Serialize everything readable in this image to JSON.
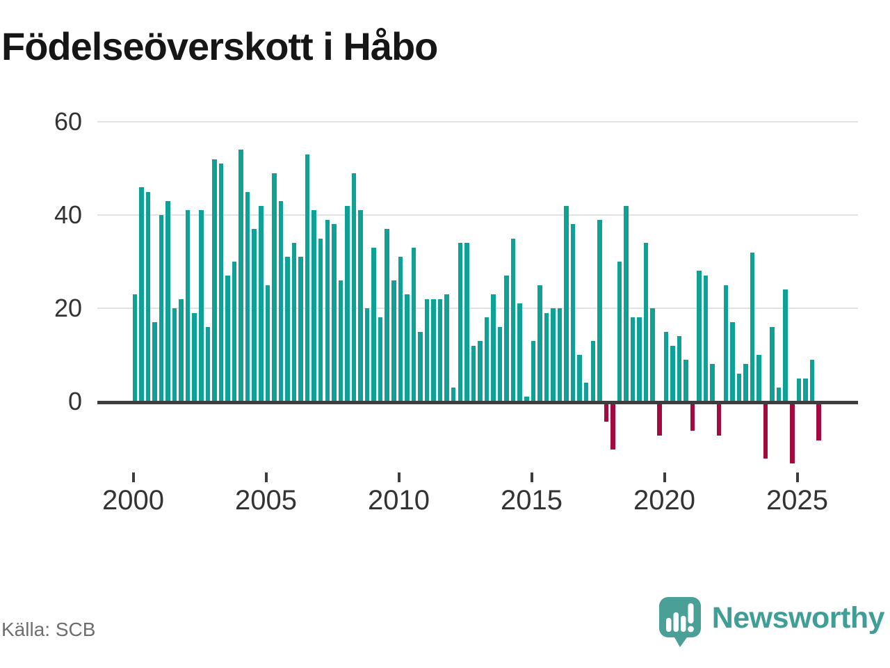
{
  "title": "Födelseöverskott i Håbo",
  "source_label": "Källa: SCB",
  "branding": {
    "wordmark": "Newsworthy",
    "logo_icon": "speech-bubble-bar-chart-icon",
    "logo_color": "#4a9f97",
    "wordmark_color": "#3f9f97"
  },
  "colors": {
    "positive_bar": "#0fa195",
    "negative_bar": "#a30b3f",
    "gridline": "#e2e2e2",
    "axis_line": "#3d3d3d",
    "tick_label": "#333333",
    "source_text": "#6e6e6e",
    "title_text": "#161616",
    "background": "#ffffff"
  },
  "chart_data": {
    "type": "bar",
    "title": "Födelseöverskott i Håbo",
    "xlabel": "",
    "ylabel": "",
    "frequency": "quarterly",
    "start_period": "2000-Q1",
    "end_period": "2025-Q4",
    "y_ticks": [
      0,
      20,
      40,
      60
    ],
    "x_tick_labels": [
      "2000",
      "2005",
      "2010",
      "2015",
      "2020",
      "2025"
    ],
    "ylim": [
      -15,
      62
    ],
    "grid": true,
    "legend": "none",
    "series": [
      {
        "name": "Födelseöverskott",
        "values": [
          23,
          46,
          45,
          17,
          40,
          43,
          20,
          22,
          41,
          19,
          41,
          16,
          52,
          51,
          27,
          30,
          54,
          45,
          37,
          42,
          25,
          49,
          43,
          31,
          34,
          31,
          53,
          41,
          35,
          39,
          38,
          26,
          42,
          49,
          41,
          20,
          33,
          18,
          37,
          26,
          31,
          23,
          33,
          15,
          22,
          22,
          22,
          23,
          3,
          34,
          34,
          12,
          13,
          18,
          23,
          16,
          27,
          35,
          21,
          1,
          13,
          25,
          19,
          20,
          20,
          42,
          38,
          10,
          4,
          13,
          39,
          -4,
          -10,
          30,
          42,
          18,
          18,
          34,
          20,
          -7,
          15,
          12,
          14,
          9,
          -6,
          28,
          27,
          8,
          -7,
          25,
          17,
          6,
          8,
          32,
          10,
          -12,
          16,
          3,
          24,
          -13,
          5,
          5,
          9,
          -8
        ]
      }
    ]
  }
}
